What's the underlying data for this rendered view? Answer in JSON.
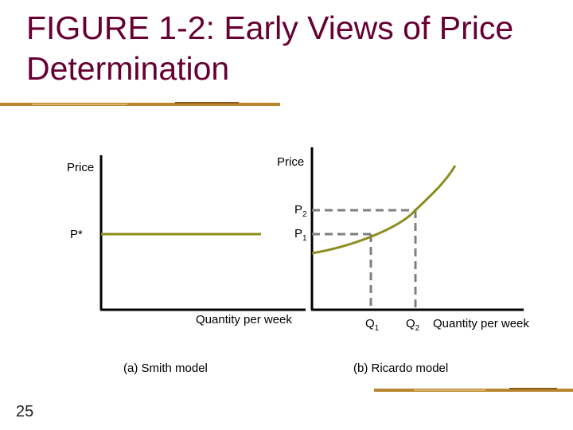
{
  "slide": {
    "title": "FIGURE 1-2: Early Views of Price Determination",
    "page_number": "25"
  },
  "colors": {
    "title": "#660033",
    "curve": "#8c8c1e",
    "dashed": "#7f7f7f",
    "axis": "#000000",
    "decor_bar": "#b8862e"
  },
  "panel_a": {
    "y_axis_label": "Price",
    "x_axis_label": "Quantity per week",
    "price_level_label": "P*",
    "caption": "(a) Smith model"
  },
  "panel_b": {
    "y_axis_label": "Price",
    "x_axis_label": "Quantity per week",
    "p2_label": "P",
    "p2_sub": "2",
    "p1_label": "P",
    "p1_sub": "1",
    "q1_label": "Q",
    "q1_sub": "1",
    "q2_label": "Q",
    "q2_sub": "2",
    "caption": "(b) Ricardo model"
  }
}
